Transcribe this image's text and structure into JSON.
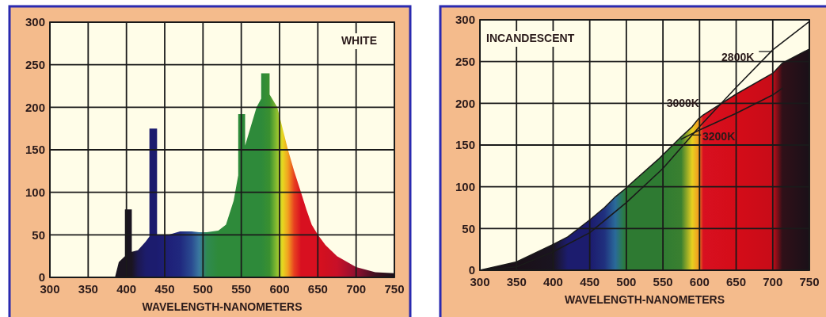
{
  "chart_data": [
    {
      "type": "area",
      "title": "WHITE",
      "xlabel": "WAVELENGTH-NANOMETERS",
      "xlim": [
        300,
        750
      ],
      "ylim": [
        0,
        300
      ],
      "xticks": [
        300,
        350,
        400,
        450,
        500,
        550,
        600,
        650,
        700,
        750
      ],
      "yticks": [
        0,
        50,
        100,
        150,
        200,
        250,
        300
      ],
      "grid": true,
      "series": [
        {
          "x": [
            385,
            390,
            398,
            398,
            407,
            407,
            415,
            425,
            430,
            430,
            440,
            440,
            455,
            470,
            485,
            495,
            505,
            520,
            530,
            540,
            546,
            546,
            555,
            555,
            560,
            570,
            576,
            576,
            587,
            587,
            597,
            604,
            611,
            619,
            628,
            635,
            642,
            650,
            660,
            675,
            700,
            725,
            750
          ],
          "values": [
            0,
            18,
            25,
            80,
            80,
            30,
            32,
            42,
            48,
            175,
            175,
            50,
            50,
            54,
            54,
            53,
            53,
            55,
            62,
            90,
            120,
            192,
            192,
            155,
            170,
            200,
            210,
            240,
            240,
            215,
            200,
            175,
            150,
            125,
            100,
            80,
            62,
            50,
            38,
            25,
            12,
            6,
            5
          ],
          "colors": [
            "#1a1420",
            "#1a1420",
            "#1a1420",
            "#1a1420",
            "#1a1420",
            "#1a1420",
            "#1c1850",
            "#1c1c6a",
            "#1c1c6e",
            "#1c1c6e",
            "#1c1c6e",
            "#1c1c70",
            "#1e2078",
            "#20287e",
            "#2a4a90",
            "#3a78a0",
            "#2f8a50",
            "#2e8a3a",
            "#2e8a3a",
            "#2e8a3a",
            "#2e8a3a",
            "#2e8a3a",
            "#2e8a3a",
            "#2e8a3a",
            "#2e8a3a",
            "#2e8a3a",
            "#2e8a3a",
            "#2e8a3a",
            "#3a9030",
            "#3a9030",
            "#90c030",
            "#e8d820",
            "#f0a020",
            "#e84020",
            "#d81020",
            "#d81020",
            "#d81020",
            "#d81020",
            "#d01020",
            "#c81028",
            "#901030",
            "#401020",
            "#1a1018"
          ]
        }
      ]
    },
    {
      "type": "area",
      "title": "INCANDESCENT",
      "xlabel": "WAVELENGTH-NANOMETERS",
      "xlim": [
        300,
        750
      ],
      "ylim": [
        0,
        300
      ],
      "xticks": [
        300,
        350,
        400,
        450,
        500,
        550,
        600,
        650,
        700,
        750
      ],
      "yticks": [
        0,
        50,
        100,
        150,
        200,
        250,
        300
      ],
      "grid": true,
      "series": [
        {
          "name": "3000K",
          "color": "#1a1a1a",
          "x": [
            300,
            350,
            400,
            420,
            451,
            470,
            485,
            495,
            500,
            545,
            575,
            590,
            598,
            605,
            650,
            700,
            713,
            750
          ],
          "values": [
            0,
            10,
            31,
            40,
            61,
            75,
            88,
            95,
            99,
            134,
            160,
            172,
            181,
            186,
            211,
            236,
            248,
            265
          ],
          "colors": [
            "#1a1018",
            "#1a1018",
            "#1a1420",
            "#1c1c6e",
            "#1c1c6e",
            "#20307e",
            "#2a6a9a",
            "#2a7a50",
            "#2e7a32",
            "#2e7a32",
            "#3a8030",
            "#e8d020",
            "#f0a020",
            "#d81020",
            "#d40c18",
            "#c80c18",
            "#301018",
            "#1a1018"
          ]
        },
        {
          "name": "2800K",
          "type": "line",
          "color": "#1a1a1a",
          "x": [
            300,
            350,
            400,
            450,
            500,
            550,
            600,
            650,
            700,
            750
          ],
          "values": [
            0,
            4,
            22,
            45,
            81,
            122,
            172,
            219,
            264,
            298
          ]
        },
        {
          "name": "3200K",
          "type": "line",
          "color": "#1a1a1a",
          "x": [
            575,
            600,
            650,
            700,
            713
          ],
          "values": [
            157,
            168,
            188,
            210,
            218
          ]
        }
      ]
    }
  ]
}
